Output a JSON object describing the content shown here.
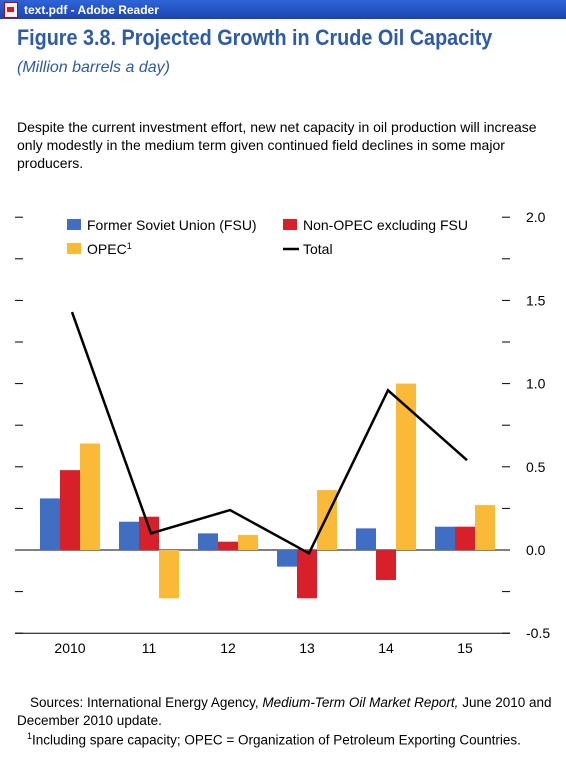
{
  "window": {
    "title": "text.pdf - Adobe Reader"
  },
  "figure": {
    "title": "Figure 3.8.  Projected Growth in Crude Oil Capacity",
    "subtitle": "(Million barrels a day)",
    "description": "Despite the current investment effort, new net capacity in oil production will increase only modestly in the medium term given continued field declines in some major producers.",
    "sources_prefix": "Sources: International Energy Agency, ",
    "sources_italic": "Medium-Term Oil Market Report,",
    "sources_suffix": " June 2010 and December 2010 update.",
    "footnote_mark": "1",
    "footnote_text": "Including spare capacity; OPEC = Organization of Petroleum Exporting Countries."
  },
  "colors": {
    "fsu": "#3f6ec3",
    "non_opec": "#d7202a",
    "opec": "#fbb938",
    "total": "#000000"
  },
  "chart_data": {
    "type": "bar",
    "categories": [
      "2010",
      "11",
      "12",
      "13",
      "14",
      "15"
    ],
    "series": [
      {
        "name": "Former Soviet Union (FSU)",
        "kind": "bar",
        "color": "#3f6ec3",
        "values": [
          0.31,
          0.17,
          0.1,
          -0.1,
          0.13,
          0.14
        ]
      },
      {
        "name": "Non-OPEC excluding FSU",
        "kind": "bar",
        "color": "#d7202a",
        "values": [
          0.48,
          0.2,
          0.05,
          -0.29,
          -0.18,
          0.14
        ]
      },
      {
        "name": "OPEC",
        "name_sup": "1",
        "kind": "bar",
        "color": "#fbb938",
        "values": [
          0.64,
          -0.29,
          0.09,
          0.36,
          1.0,
          0.27
        ]
      },
      {
        "name": "Total",
        "kind": "line",
        "color": "#000000",
        "values": [
          1.43,
          0.1,
          0.24,
          -0.02,
          0.96,
          0.54
        ]
      }
    ],
    "ylim": [
      -0.5,
      2.0
    ],
    "yticks": [
      2.0,
      1.5,
      1.0,
      0.5,
      0.0,
      -0.5
    ],
    "ytick_labels": [
      "2.0",
      "1.5",
      "1.0",
      "0.5",
      "0.0",
      "-0.5"
    ],
    "y_axis_side": "right",
    "grid": false,
    "legend_placement": "top-left"
  }
}
